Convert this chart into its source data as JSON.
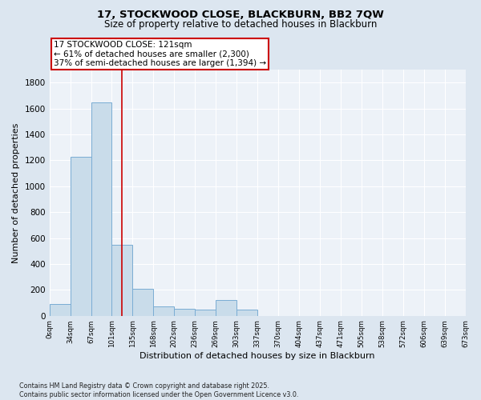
{
  "title1": "17, STOCKWOOD CLOSE, BLACKBURN, BB2 7QW",
  "title2": "Size of property relative to detached houses in Blackburn",
  "xlabel": "Distribution of detached houses by size in Blackburn",
  "ylabel": "Number of detached properties",
  "bar_values": [
    90,
    1230,
    1650,
    550,
    210,
    75,
    55,
    50,
    120,
    50,
    0,
    0,
    0,
    0,
    0,
    0,
    0,
    0,
    0,
    0
  ],
  "bar_labels": [
    "0sqm",
    "34sqm",
    "67sqm",
    "101sqm",
    "135sqm",
    "168sqm",
    "202sqm",
    "236sqm",
    "269sqm",
    "303sqm",
    "337sqm",
    "370sqm",
    "404sqm",
    "437sqm",
    "471sqm",
    "505sqm",
    "538sqm",
    "572sqm",
    "606sqm",
    "639sqm",
    "673sqm"
  ],
  "bar_color": "#c9dcea",
  "bar_edge_color": "#7aadd4",
  "vline_x": 3.5,
  "vline_color": "#cc0000",
  "annotation_title": "17 STOCKWOOD CLOSE: 121sqm",
  "annotation_line1": "← 61% of detached houses are smaller (2,300)",
  "annotation_line2": "37% of semi-detached houses are larger (1,394) →",
  "annotation_box_color": "white",
  "annotation_box_edge": "#cc0000",
  "ylim": [
    0,
    1900
  ],
  "yticks": [
    0,
    200,
    400,
    600,
    800,
    1000,
    1200,
    1400,
    1600,
    1800
  ],
  "footnote1": "Contains HM Land Registry data © Crown copyright and database right 2025.",
  "footnote2": "Contains public sector information licensed under the Open Government Licence v3.0.",
  "bg_color": "#dce6f0",
  "plot_bg_color": "#edf2f8"
}
